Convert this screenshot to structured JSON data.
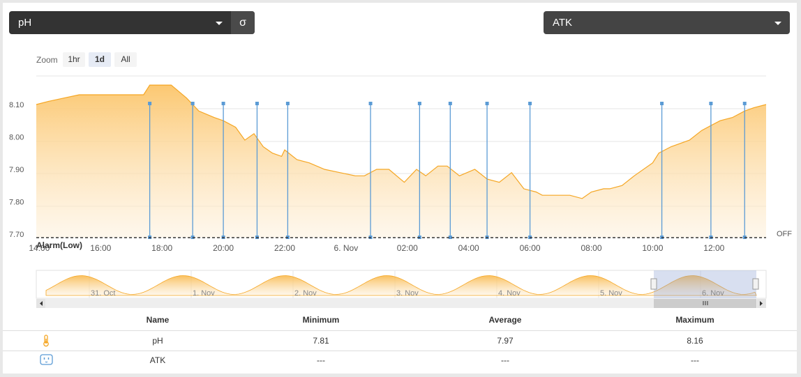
{
  "controls": {
    "series_select": "pH",
    "sigma_label": "σ",
    "device_select": "ATK",
    "zoom_label": "Zoom",
    "zoom_buttons": [
      "1hr",
      "1d",
      "All"
    ],
    "zoom_active": "1d"
  },
  "chart_data": {
    "type": "area",
    "x_tick_labels": [
      "14:00",
      "16:00",
      "18:00",
      "20:00",
      "22:00",
      "6. Nov",
      "02:00",
      "04:00",
      "06:00",
      "08:00",
      "10:00",
      "12:00"
    ],
    "y_tick_labels": [
      "8.10",
      "8.00",
      "7.90",
      "7.80",
      "7.70"
    ],
    "ylim": [
      7.7,
      8.16
    ],
    "xlim_hours": [
      13.9,
      37.7
    ],
    "series": [
      {
        "name": "pH",
        "color": "#f5a623",
        "x": [
          13.9,
          14.3,
          14.8,
          15.3,
          16.0,
          16.5,
          17.0,
          17.4,
          17.6,
          18.3,
          18.8,
          19.2,
          19.7,
          20.0,
          20.4,
          20.7,
          21.0,
          21.3,
          21.6,
          21.9,
          22.0,
          22.4,
          22.8,
          23.3,
          23.8,
          24.3,
          24.6,
          25.0,
          25.4,
          25.9,
          26.3,
          26.6,
          27.0,
          27.3,
          27.7,
          28.2,
          28.6,
          29.0,
          29.4,
          29.8,
          30.2,
          30.4,
          30.8,
          31.3,
          31.7,
          32.0,
          32.4,
          32.6,
          33.0,
          33.4,
          34.0,
          34.2,
          34.6,
          35.2,
          35.6,
          36.2,
          36.6,
          37.0,
          37.3,
          37.7
        ],
        "values": [
          8.1,
          8.11,
          8.12,
          8.13,
          8.13,
          8.13,
          8.13,
          8.13,
          8.16,
          8.16,
          8.12,
          8.08,
          8.06,
          8.05,
          8.03,
          7.99,
          8.01,
          7.97,
          7.95,
          7.94,
          7.96,
          7.93,
          7.92,
          7.9,
          7.89,
          7.88,
          7.88,
          7.9,
          7.9,
          7.86,
          7.9,
          7.88,
          7.91,
          7.91,
          7.88,
          7.9,
          7.87,
          7.86,
          7.89,
          7.84,
          7.83,
          7.82,
          7.82,
          7.82,
          7.81,
          7.83,
          7.84,
          7.84,
          7.85,
          7.88,
          7.92,
          7.95,
          7.97,
          7.99,
          8.02,
          8.05,
          8.06,
          8.08,
          8.09,
          8.1
        ]
      }
    ],
    "event_markers_hours": [
      17.6,
      19.0,
      20.0,
      21.1,
      22.1,
      24.8,
      26.4,
      27.4,
      28.6,
      30.0,
      34.3,
      35.9,
      37.0
    ],
    "threshold": {
      "label": "Alarm(Low)",
      "value": 7.7,
      "state_label": "OFF"
    },
    "navigator": {
      "labels": [
        "31. Oct",
        "1. Nov",
        "2. Nov",
        "3. Nov",
        "4. Nov",
        "5. Nov",
        "6. Nov"
      ],
      "selection": "last day"
    },
    "grid": true
  },
  "table": {
    "headers": [
      "Name",
      "Minimum",
      "Average",
      "Maximum"
    ],
    "rows": [
      {
        "icon": "thermometer-icon",
        "name": "pH",
        "min": "7.81",
        "avg": "7.97",
        "max": "8.16"
      },
      {
        "icon": "outlet-icon",
        "name": "ATK",
        "min": "---",
        "avg": "---",
        "max": "---"
      }
    ]
  }
}
